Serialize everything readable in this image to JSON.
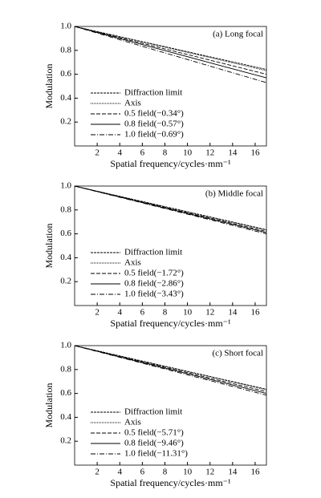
{
  "chart_data": [
    {
      "type": "line",
      "annotation": "(a) Long focal",
      "xlabel": "Spatial frequency/cycles·mm⁻¹",
      "ylabel": "Modulation",
      "x": [
        0,
        4,
        8,
        12,
        17
      ],
      "xlim": [
        0,
        17
      ],
      "xticks": [
        2,
        4,
        6,
        8,
        10,
        12,
        14,
        16
      ],
      "ylim": [
        0,
        1
      ],
      "yticks": [
        0.2,
        0.4,
        0.6,
        0.8,
        {
          "value": 1,
          "label": "1.0"
        }
      ],
      "series": [
        {
          "name": "Diffraction limit",
          "color": "#000000",
          "values": [
            1,
            0.915,
            0.831,
            0.746,
            0.64
          ]
        },
        {
          "name": "Axis",
          "color": "#000000",
          "values": [
            1,
            0.913,
            0.826,
            0.739,
            0.63
          ]
        },
        {
          "name": "0.5 field(−0.34°)",
          "color": "#000000",
          "values": [
            1,
            0.906,
            0.812,
            0.718,
            0.6
          ]
        },
        {
          "name": "0.8 field(−0.57°)",
          "color": "#000000",
          "values": [
            1,
            0.899,
            0.798,
            0.696,
            0.57
          ]
        },
        {
          "name": "1.0 field(−0.69°)",
          "color": "#000000",
          "values": [
            1,
            0.889,
            0.779,
            0.668,
            0.53
          ]
        }
      ]
    },
    {
      "type": "line",
      "annotation": "(b) Middle focal",
      "xlabel": "Spatial frequency/cycles·mm⁻¹",
      "ylabel": "Modulation",
      "x": [
        0,
        4,
        8,
        12,
        17
      ],
      "xlim": [
        0,
        17
      ],
      "xticks": [
        2,
        4,
        6,
        8,
        10,
        12,
        14,
        16
      ],
      "ylim": [
        0,
        1
      ],
      "yticks": [
        0.2,
        0.4,
        0.6,
        0.8,
        {
          "value": 1,
          "label": "1.0"
        }
      ],
      "series": [
        {
          "name": "Diffraction limit",
          "color": "#000000",
          "values": [
            1,
            0.914,
            0.828,
            0.742,
            0.635
          ]
        },
        {
          "name": "Axis",
          "color": "#000000",
          "values": [
            1,
            0.913,
            0.826,
            0.739,
            0.63
          ]
        },
        {
          "name": "0.5 field(−1.72°)",
          "color": "#000000",
          "values": [
            1,
            0.911,
            0.821,
            0.732,
            0.62
          ]
        },
        {
          "name": "0.8 field(−2.86°)",
          "color": "#000000",
          "values": [
            1,
            0.908,
            0.816,
            0.725,
            0.61
          ]
        },
        {
          "name": "1.0 field(−3.43°)",
          "color": "#000000",
          "values": [
            1,
            0.906,
            0.812,
            0.718,
            0.6
          ]
        }
      ]
    },
    {
      "type": "line",
      "annotation": "(c) Short focal",
      "xlabel": "Spatial frequency/cycles·mm⁻¹",
      "ylabel": "Modulation",
      "x": [
        0,
        4,
        8,
        12,
        17
      ],
      "xlim": [
        0,
        17
      ],
      "xticks": [
        2,
        4,
        6,
        8,
        10,
        12,
        14,
        16
      ],
      "ylim": [
        0,
        1
      ],
      "yticks": [
        0.2,
        0.4,
        0.6,
        0.8,
        {
          "value": 1,
          "label": "1.0"
        }
      ],
      "series": [
        {
          "name": "Diffraction limit",
          "color": "#000000",
          "values": [
            1,
            0.914,
            0.828,
            0.742,
            0.635
          ]
        },
        {
          "name": "Axis",
          "color": "#000000",
          "values": [
            1,
            0.913,
            0.826,
            0.739,
            0.63
          ]
        },
        {
          "name": "0.5 field(−5.71°)",
          "color": "#000000",
          "values": [
            1,
            0.909,
            0.819,
            0.728,
            0.615
          ]
        },
        {
          "name": "0.8 field(−9.46°)",
          "color": "#000000",
          "values": [
            1,
            0.906,
            0.812,
            0.718,
            0.6
          ]
        },
        {
          "name": "1.0 field(−11.31°)",
          "color": "#000000",
          "values": [
            1,
            0.902,
            0.805,
            0.707,
            0.585
          ]
        }
      ]
    }
  ]
}
